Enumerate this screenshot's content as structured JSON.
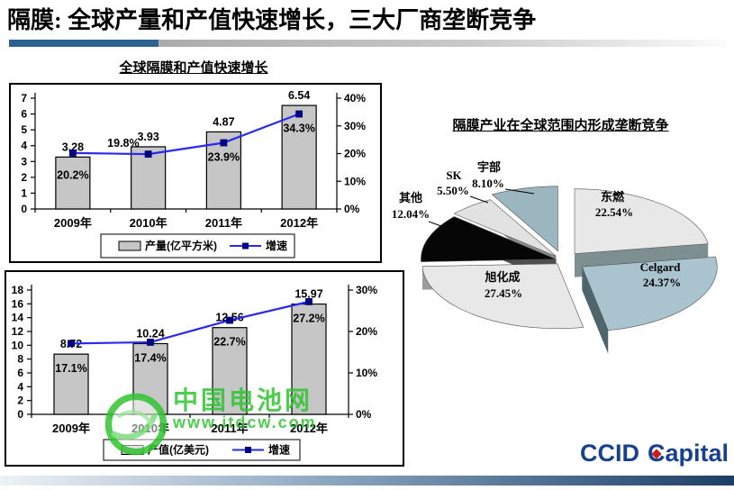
{
  "slide": {
    "title": "隔膜: 全球产量和产值快速增长，三大厂商垄断竞争",
    "logo": {
      "left": "CCID",
      "cap_c": "C",
      "rest": "apital"
    }
  },
  "watermark": {
    "name": "中国电池网",
    "url": "www.itdcw.com"
  },
  "colors": {
    "accent_blue": "#2e608f",
    "bar_fill": "#c6c6c6",
    "bar_border": "#000000",
    "line_blue": "#2a2aee",
    "marker_navy": "#00008b",
    "logo_navy": "#17418f",
    "logo_red": "#c22424",
    "watermark_green": "#31c331",
    "footer_dark": "#1d3e66"
  },
  "chart_data": [
    {
      "type": "bar+line",
      "title": "全球隔膜和产值快速增长",
      "categories": [
        "2009年",
        "2010年",
        "2011年",
        "2012年"
      ],
      "bar_series": {
        "name": "产量(亿平方米)",
        "values": [
          3.28,
          3.93,
          4.87,
          6.54
        ],
        "labels": [
          "3.28",
          "3.93",
          "4.87",
          "6.54"
        ]
      },
      "line_series": {
        "name": "增速",
        "values_pct": [
          20.2,
          19.8,
          23.9,
          34.3
        ],
        "labels": [
          "20.2%",
          "19.8%",
          "23.9%",
          "34.3%"
        ]
      },
      "left_axis": {
        "min": 0,
        "max": 7,
        "step": 1
      },
      "right_axis": {
        "min": 0,
        "max": 40,
        "step": 10,
        "suffix": "%"
      },
      "grid": false,
      "legend_position": "bottom"
    },
    {
      "type": "bar+line",
      "categories": [
        "2009年",
        "2010年",
        "2011年",
        "2012年"
      ],
      "bar_series": {
        "name": "产值(亿美元)",
        "values": [
          8.72,
          10.24,
          12.56,
          15.97
        ],
        "labels": [
          "8.72",
          "10.24",
          "12.56",
          "15.97"
        ]
      },
      "line_series": {
        "name": "增速",
        "values_pct": [
          17.1,
          17.4,
          22.7,
          27.2
        ],
        "labels": [
          "17.1%",
          "17.4%",
          "22.7%",
          "27.2%"
        ]
      },
      "left_axis": {
        "min": 0,
        "max": 18,
        "step": 2
      },
      "right_axis": {
        "min": 0,
        "max": 30,
        "step": 10,
        "suffix": "%"
      },
      "grid": false,
      "legend_position": "bottom"
    },
    {
      "type": "pie",
      "title": "隔膜产业在全球范围内形成垄断竞争",
      "style": "3d-exploded",
      "slices": [
        {
          "label": "东燃",
          "pct": 22.54,
          "pct_label": "22.54%",
          "color": "#e8e8e8",
          "side": "#7e8f91"
        },
        {
          "label": "Celgard",
          "pct": 24.37,
          "pct_label": "24.37%",
          "color": "#a9c4ce",
          "side": "#4e656c"
        },
        {
          "label": "旭化成",
          "pct": 27.45,
          "pct_label": "27.45%",
          "color": "#e8e8e8",
          "side": "#9b9b9b"
        },
        {
          "label": "其他",
          "pct": 12.04,
          "pct_label": "12.04%",
          "color": "#060606",
          "side": "#4d4d4d"
        },
        {
          "label": "SK",
          "pct": 5.5,
          "pct_label": "5.50%",
          "color": "#e2e2e2",
          "side": "#8a8a8a"
        },
        {
          "label": "宇部",
          "pct": 8.1,
          "pct_label": "8.10%",
          "color": "#9cb6bf",
          "side": "#5a747e"
        }
      ]
    }
  ]
}
